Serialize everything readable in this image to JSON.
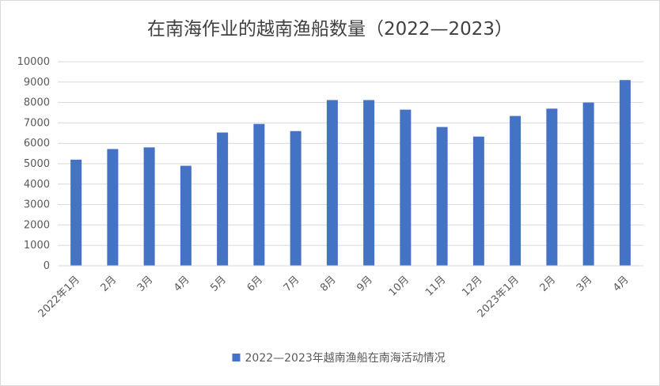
{
  "chart_data": {
    "type": "bar",
    "title": "在南海作业的越南渔船数量（2022—2023）",
    "categories": [
      "2022年1月",
      "2月",
      "3月",
      "4月",
      "5月",
      "6月",
      "7月",
      "8月",
      "9月",
      "10月",
      "11月",
      "12月",
      "2023年1月",
      "2月",
      "3月",
      "4月"
    ],
    "series": [
      {
        "name": "2022—2023年越南渔船在南海活动情况",
        "values": [
          5200,
          5720,
          5800,
          4900,
          6530,
          6950,
          6600,
          8120,
          8120,
          7650,
          6800,
          6330,
          7340,
          7700,
          8000,
          9100
        ],
        "color": "#4472c4"
      }
    ],
    "yticks": [
      "0",
      "1000",
      "2000",
      "3000",
      "4000",
      "5000",
      "6000",
      "7000",
      "8000",
      "9000",
      "10000"
    ],
    "ylim": [
      0,
      10000
    ],
    "grid": true,
    "legend_position": "bottom"
  }
}
